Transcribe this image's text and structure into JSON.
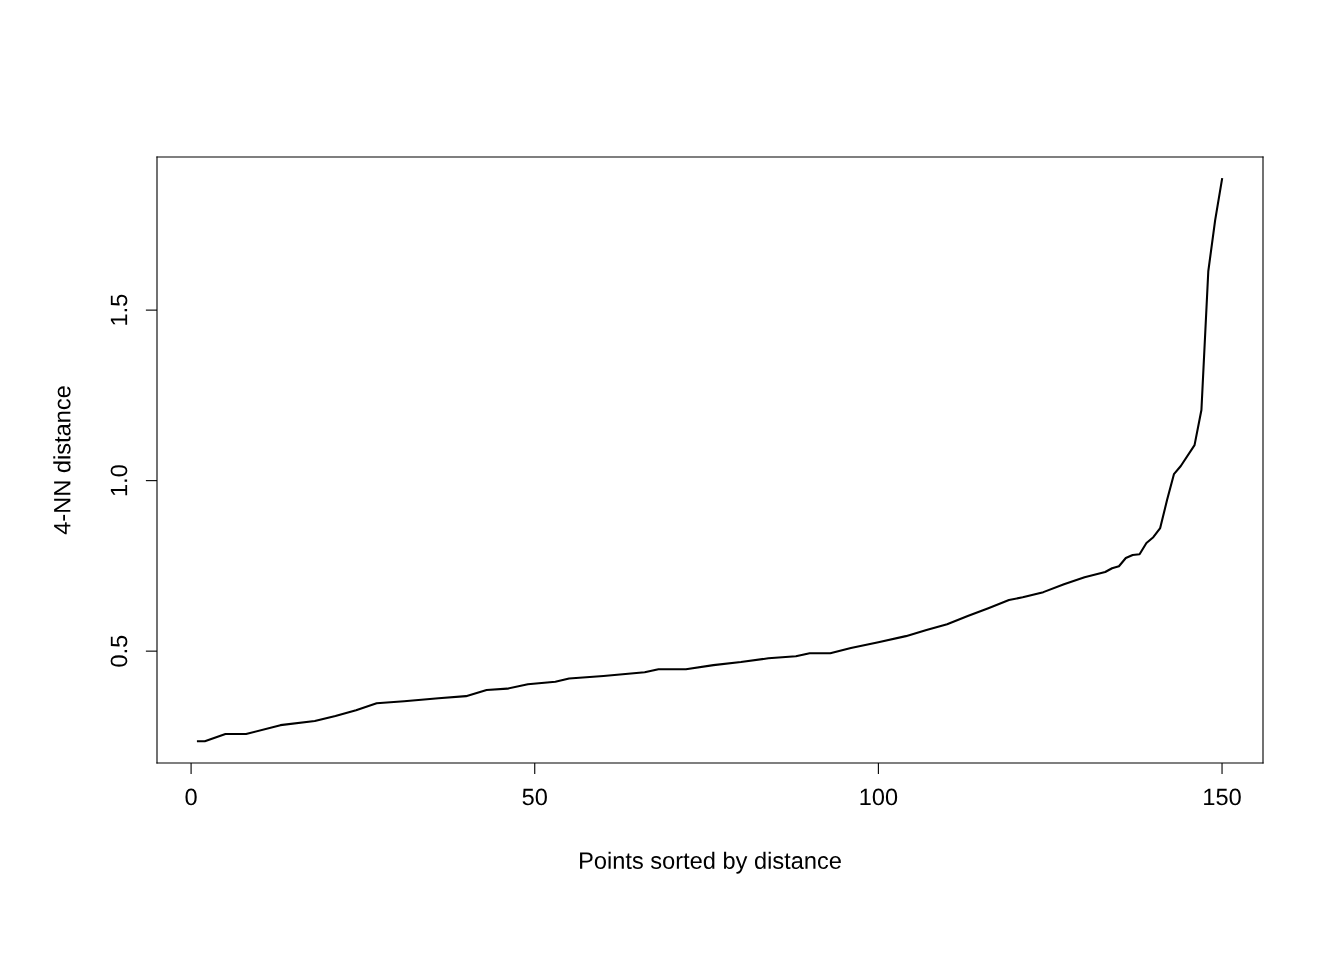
{
  "chart_data": {
    "type": "line",
    "xlabel": "Points sorted by distance",
    "ylabel": "4-NN distance",
    "series": [
      {
        "color": "#000000",
        "x": [
          1,
          2,
          5,
          8,
          13,
          18,
          21,
          24,
          27,
          31,
          36,
          40,
          43,
          46,
          49,
          53,
          55,
          60,
          66,
          68,
          72,
          76,
          80,
          84,
          88,
          90,
          93,
          96,
          100,
          104,
          107,
          110,
          113,
          116,
          119,
          121,
          124,
          127,
          130,
          133,
          134,
          135,
          136,
          137,
          138,
          139,
          140,
          141,
          142,
          143,
          144,
          146,
          147,
          148,
          149,
          150
        ],
        "values": [
          0.236,
          0.236,
          0.257,
          0.257,
          0.283,
          0.295,
          0.31,
          0.327,
          0.347,
          0.353,
          0.362,
          0.368,
          0.386,
          0.39,
          0.403,
          0.41,
          0.42,
          0.427,
          0.438,
          0.447,
          0.447,
          0.459,
          0.468,
          0.479,
          0.485,
          0.494,
          0.494,
          0.509,
          0.526,
          0.544,
          0.562,
          0.579,
          0.603,
          0.626,
          0.65,
          0.658,
          0.673,
          0.696,
          0.717,
          0.732,
          0.743,
          0.749,
          0.773,
          0.782,
          0.784,
          0.817,
          0.834,
          0.861,
          0.943,
          1.019,
          1.043,
          1.104,
          1.207,
          1.614,
          1.764,
          1.884
        ]
      }
    ],
    "xlim": [
      -4.96,
      155.96
    ],
    "ylim": [
      0.172,
      1.949
    ],
    "xticks": [
      0,
      50,
      100,
      150
    ],
    "yticks": [
      0.5,
      {
        "value": 1,
        "label": "1.0"
      },
      1.5
    ],
    "grid": false,
    "line_style": "solid",
    "marker": "none"
  }
}
